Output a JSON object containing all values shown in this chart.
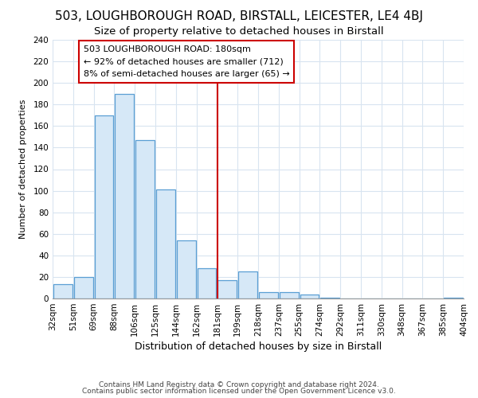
{
  "title1": "503, LOUGHBOROUGH ROAD, BIRSTALL, LEICESTER, LE4 4BJ",
  "title2": "Size of property relative to detached houses in Birstall",
  "xlabel": "Distribution of detached houses by size in Birstall",
  "ylabel": "Number of detached properties",
  "footer1": "Contains HM Land Registry data © Crown copyright and database right 2024.",
  "footer2": "Contains public sector information licensed under the Open Government Licence v3.0.",
  "annotation_line1": "503 LOUGHBOROUGH ROAD: 180sqm",
  "annotation_line2": "← 92% of detached houses are smaller (712)",
  "annotation_line3": "8% of semi-detached houses are larger (65) →",
  "property_line_x": 8,
  "bar_color": "#d6e8f7",
  "bar_edge_color": "#5a9fd4",
  "property_line_color": "#cc0000",
  "annotation_box_color": "#ffffff",
  "annotation_box_edge": "#cc0000",
  "bins_left": [
    0,
    1,
    2,
    3,
    4,
    5,
    6,
    7,
    8,
    9,
    10,
    11,
    12,
    13,
    14,
    15,
    16,
    17,
    18,
    19
  ],
  "bin_labels": [
    "32sqm",
    "51sqm",
    "69sqm",
    "88sqm",
    "106sqm",
    "125sqm",
    "144sqm",
    "162sqm",
    "181sqm",
    "199sqm",
    "218sqm",
    "237sqm",
    "255sqm",
    "274sqm",
    "292sqm",
    "311sqm",
    "330sqm",
    "348sqm",
    "367sqm",
    "385sqm",
    "404sqm"
  ],
  "counts": [
    13,
    20,
    170,
    190,
    147,
    101,
    54,
    28,
    17,
    25,
    6,
    6,
    4,
    1,
    0,
    0,
    0,
    0,
    0,
    1
  ],
  "ylim": [
    0,
    240
  ],
  "yticks": [
    0,
    20,
    40,
    60,
    80,
    100,
    120,
    140,
    160,
    180,
    200,
    220,
    240
  ],
  "bg_color": "#ffffff",
  "plot_bg_color": "#ffffff",
  "grid_color": "#d8e4f0",
  "title1_fontsize": 11,
  "title2_fontsize": 9.5,
  "xlabel_fontsize": 9,
  "ylabel_fontsize": 8,
  "tick_fontsize": 7.5,
  "annotation_fontsize": 8
}
